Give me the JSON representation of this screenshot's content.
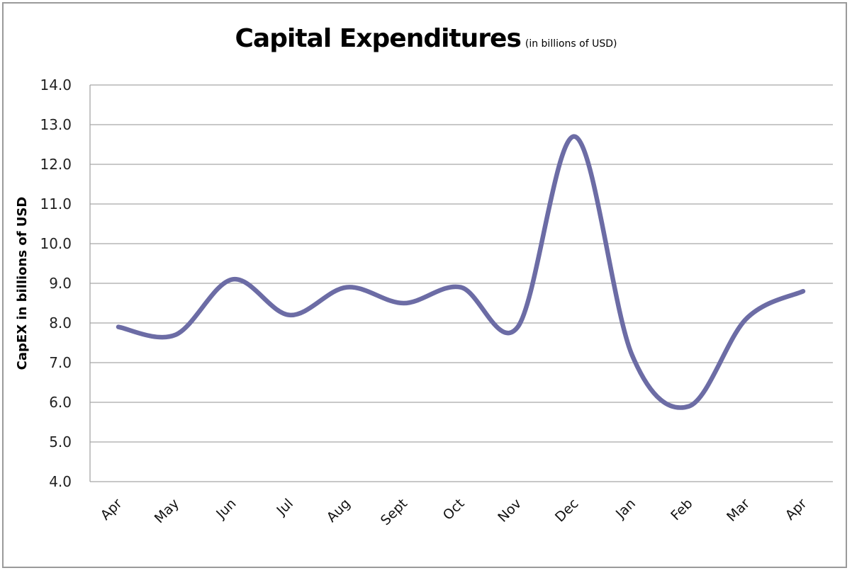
{
  "chart_data": {
    "type": "line",
    "title": "Capital Expenditures",
    "subtitle": "(in billions of USD)",
    "xlabel": "",
    "ylabel": "CapEX in billions of USD",
    "categories": [
      "Apr",
      "May",
      "Jun",
      "Jul",
      "Aug",
      "Sept",
      "Oct",
      "Nov",
      "Dec",
      "Jan",
      "Feb",
      "Mar",
      "Apr"
    ],
    "series": [
      {
        "name": "CapEX",
        "values": [
          7.9,
          7.7,
          9.1,
          8.2,
          8.9,
          8.5,
          8.9,
          7.9,
          12.7,
          7.2,
          5.9,
          8.1,
          8.8
        ],
        "color": "#6c6ca5"
      }
    ],
    "ylim": [
      4.0,
      14.0
    ],
    "yticks": [
      "4.0",
      "5.0",
      "6.0",
      "7.0",
      "8.0",
      "9.0",
      "10.0",
      "11.0",
      "12.0",
      "13.0",
      "14.0"
    ],
    "grid": true,
    "legend": "none",
    "smooth": true
  }
}
